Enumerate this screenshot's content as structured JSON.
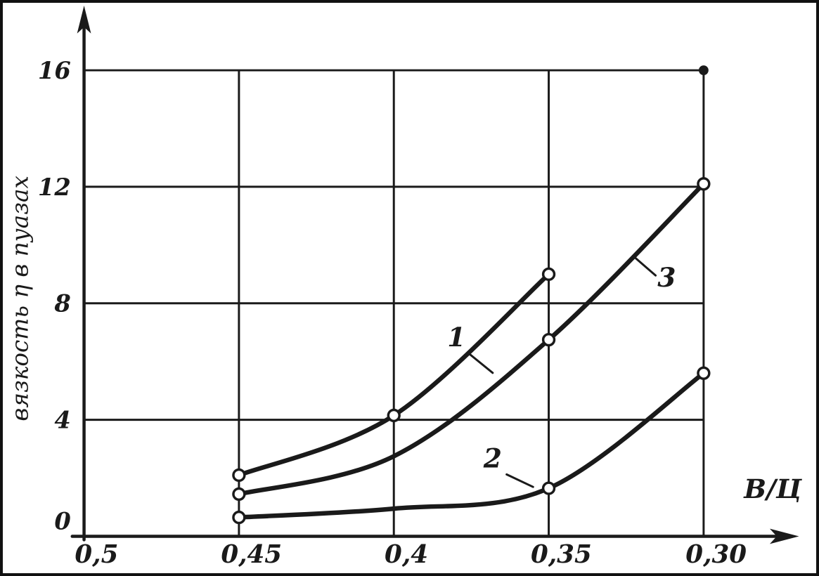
{
  "colors": {
    "ink": "#1a1a1a",
    "paper": "#ffffff"
  },
  "chart_data": {
    "type": "line",
    "title": "",
    "xlabel": "В/Ц",
    "ylabel": "вязкость η в пуазах",
    "x_axis_direction": "decreasing",
    "grid": true,
    "xlim": [
      0.5,
      0.2875
    ],
    "ylim": [
      0,
      17.3
    ],
    "x_ticks": [
      {
        "label": "0,5",
        "value": 0.5
      },
      {
        "label": "0,45",
        "value": 0.45
      },
      {
        "label": "0,4",
        "value": 0.4
      },
      {
        "label": "0,35",
        "value": 0.35
      },
      {
        "label": "0,30",
        "value": 0.3
      }
    ],
    "y_ticks": [
      {
        "label": "0",
        "value": 0
      },
      {
        "label": "4",
        "value": 4
      },
      {
        "label": "8",
        "value": 8
      },
      {
        "label": "12",
        "value": 12
      },
      {
        "label": "16",
        "value": 16
      }
    ],
    "series": [
      {
        "name": "1",
        "marker": "open-circle",
        "points": [
          [
            0.45,
            2.1
          ],
          [
            0.4,
            4.15
          ],
          [
            0.35,
            9.0
          ]
        ],
        "markers": [
          true,
          true,
          true
        ]
      },
      {
        "name": "2",
        "marker": "open-circle",
        "points": [
          [
            0.45,
            0.65
          ],
          [
            0.4,
            0.95
          ],
          [
            0.35,
            1.65
          ],
          [
            0.3,
            5.6
          ]
        ],
        "markers": [
          true,
          false,
          true,
          true
        ]
      },
      {
        "name": "3",
        "marker": "open-circle",
        "points": [
          [
            0.45,
            1.45
          ],
          [
            0.4,
            2.75
          ],
          [
            0.35,
            6.75
          ],
          [
            0.3,
            12.1
          ]
        ],
        "markers": [
          true,
          false,
          true,
          true
        ]
      }
    ],
    "isolated_points": [
      {
        "x": 0.3,
        "y": 16,
        "style": "filled-dot"
      }
    ]
  }
}
